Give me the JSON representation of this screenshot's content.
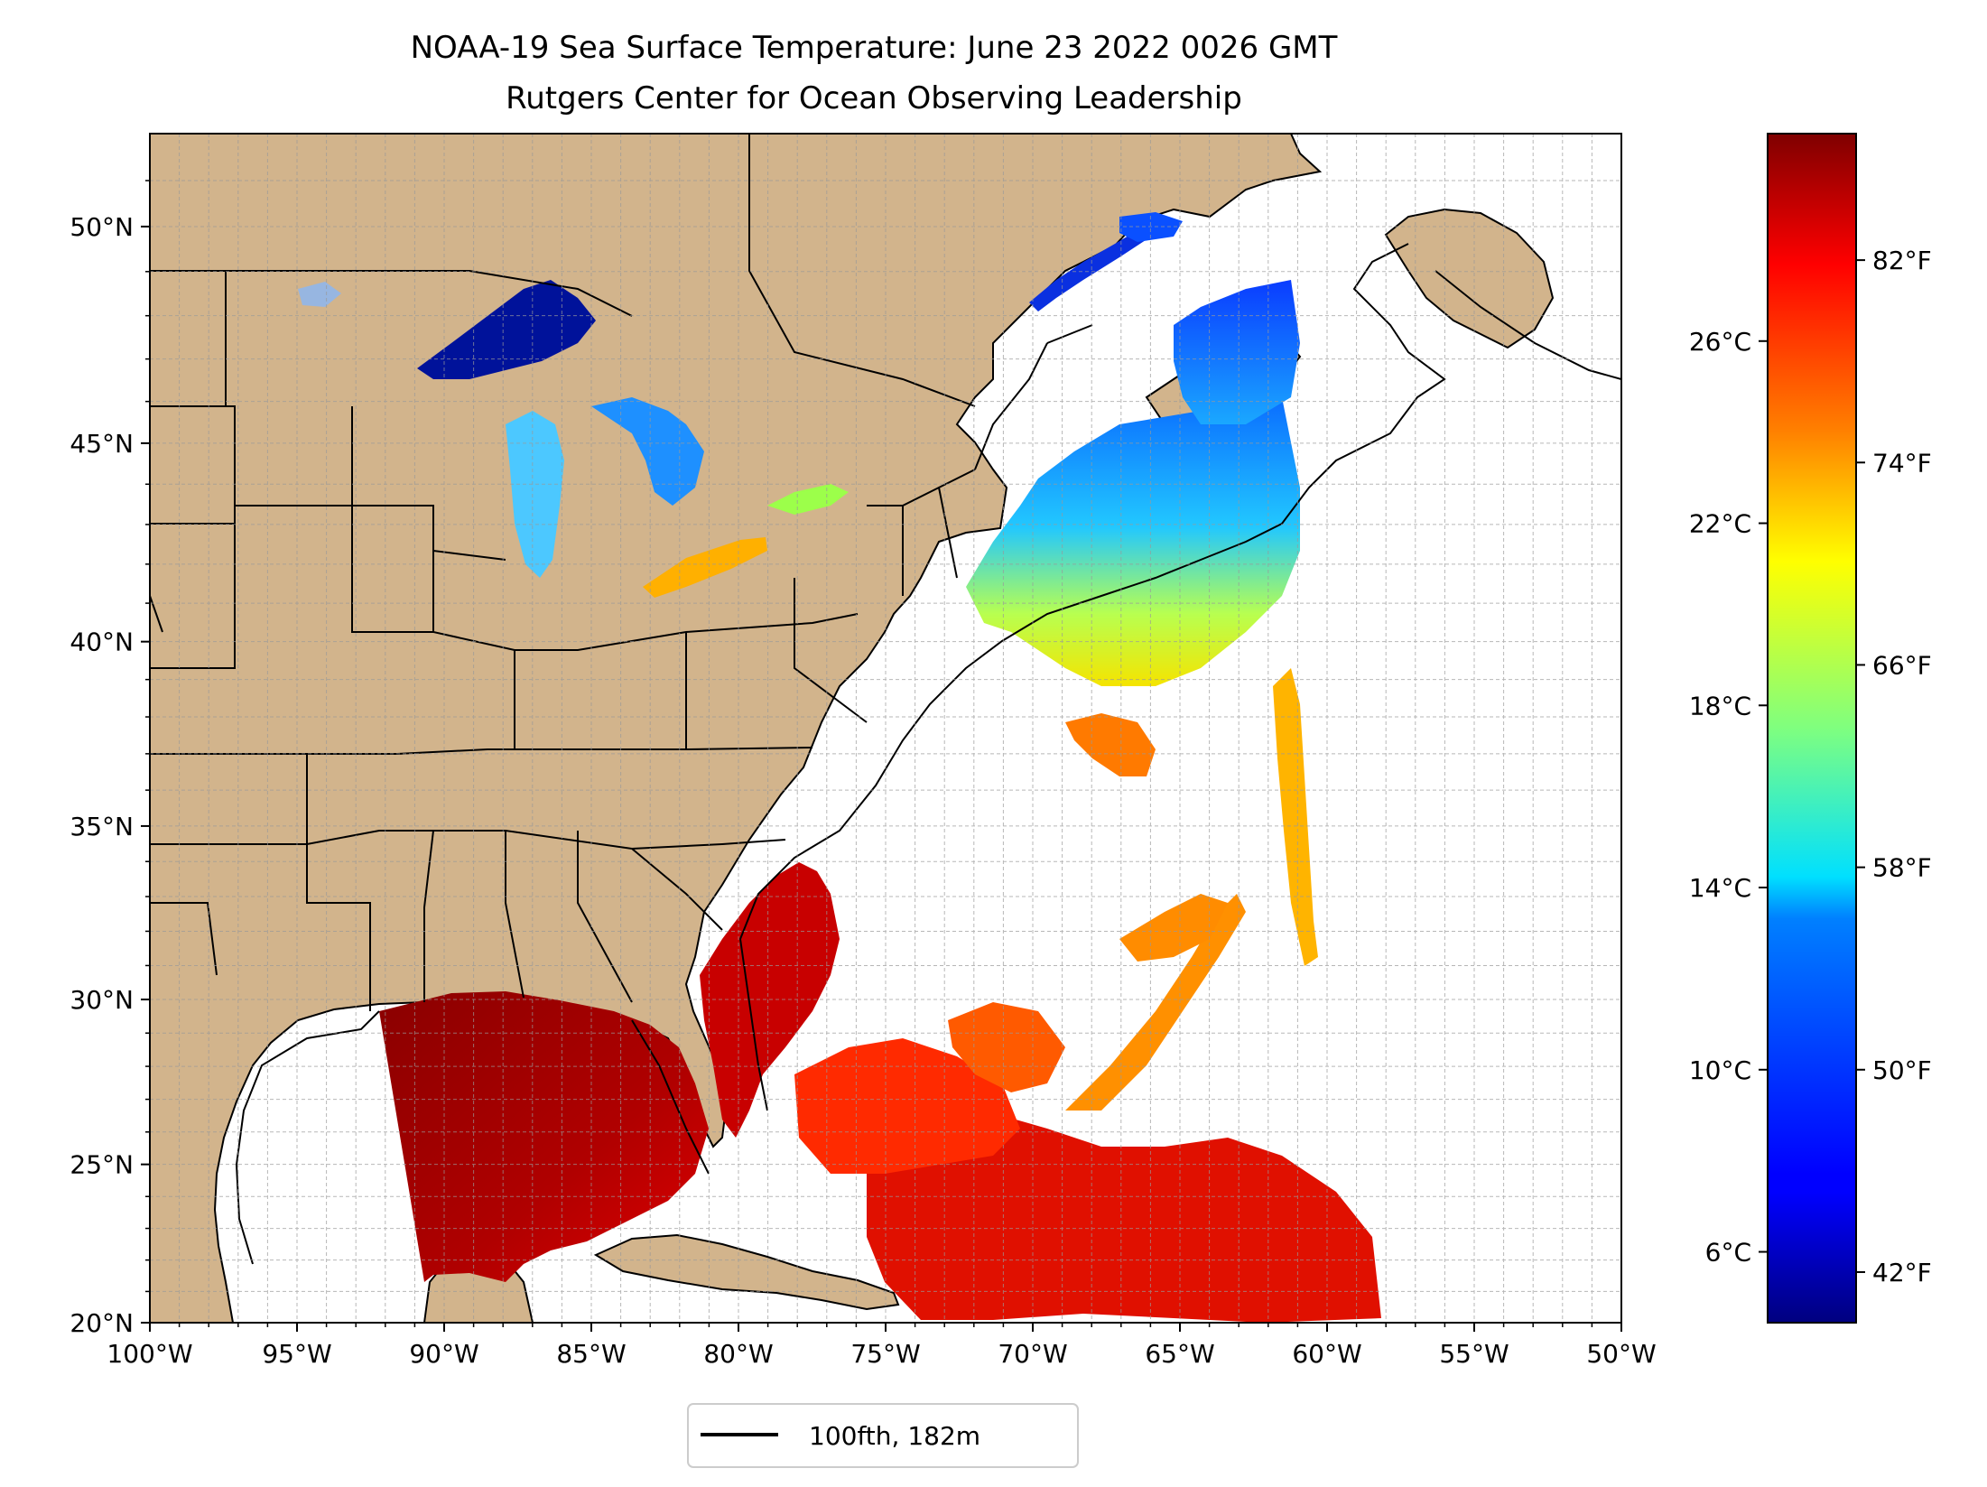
{
  "title": "NOAA-19 Sea Surface Temperature: June 23 2022 0026 GMT",
  "subtitle": "Rutgers Center for Ocean Observing Leadership",
  "map": {
    "extent": {
      "lon": [
        -100,
        -50
      ],
      "lat": [
        20,
        52
      ]
    },
    "lat_ticks": [
      {
        "value": 20,
        "label": "20°N"
      },
      {
        "value": 25,
        "label": "25°N"
      },
      {
        "value": 30,
        "label": "30°N"
      },
      {
        "value": 35,
        "label": "35°N"
      },
      {
        "value": 40,
        "label": "40°N"
      },
      {
        "value": 45,
        "label": "45°N"
      },
      {
        "value": 50,
        "label": "50°N"
      }
    ],
    "lon_ticks": [
      {
        "value": -100,
        "label": "100°W"
      },
      {
        "value": -95,
        "label": "95°W"
      },
      {
        "value": -90,
        "label": "90°W"
      },
      {
        "value": -85,
        "label": "85°W"
      },
      {
        "value": -80,
        "label": "80°W"
      },
      {
        "value": -75,
        "label": "75°W"
      },
      {
        "value": -70,
        "label": "70°W"
      },
      {
        "value": -65,
        "label": "65°W"
      },
      {
        "value": -60,
        "label": "60°W"
      },
      {
        "value": -55,
        "label": "55°W"
      },
      {
        "value": -50,
        "label": "50°W"
      }
    ],
    "gridlines": true,
    "land_color": "#d2b48c",
    "lake_color": "#97b6e1",
    "ocean_color": "#ffffff"
  },
  "colorbar": {
    "colormap": "jet",
    "range_f": [
      40,
      87
    ],
    "fahrenheit_ticks": [
      {
        "value": 42,
        "label": "42°F"
      },
      {
        "value": 50,
        "label": "50°F"
      },
      {
        "value": 58,
        "label": "58°F"
      },
      {
        "value": 66,
        "label": "66°F"
      },
      {
        "value": 74,
        "label": "74°F"
      },
      {
        "value": 82,
        "label": "82°F"
      }
    ],
    "celsius_ticks": [
      {
        "value": 6,
        "label": "6°C"
      },
      {
        "value": 10,
        "label": "10°C"
      },
      {
        "value": 14,
        "label": "14°C"
      },
      {
        "value": 18,
        "label": "18°C"
      },
      {
        "value": 22,
        "label": "22°C"
      },
      {
        "value": 26,
        "label": "26°C"
      }
    ]
  },
  "legend": {
    "label": "100fth, 182m",
    "placement": "bottom-center",
    "line_color": "#000000"
  }
}
